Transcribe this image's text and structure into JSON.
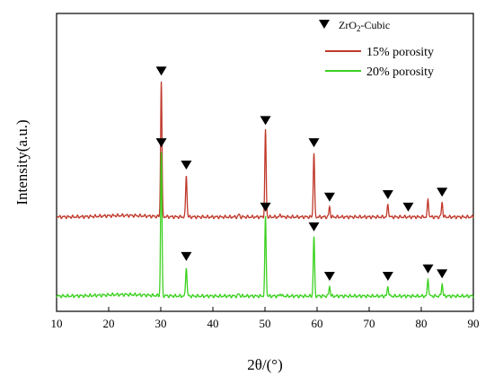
{
  "chart_data": {
    "type": "line",
    "xlabel": "2θ/(°)",
    "ylabel": "Intensity(a.u.)",
    "xlim": [
      10,
      90
    ],
    "x_ticks": [
      10,
      20,
      30,
      40,
      50,
      60,
      70,
      80,
      90
    ],
    "y_ticks_shown": false,
    "grid": false,
    "legend_placement": "top-right",
    "marker_legend": {
      "symbol": "▼",
      "label_main": "ZrO",
      "label_sub": "2",
      "label_rest": "-Cubic"
    },
    "series": [
      {
        "name": "15% porosity",
        "color": "#c0392b",
        "baseline": 0.32,
        "peaks": [
          {
            "x": 30.1,
            "h": 0.55
          },
          {
            "x": 34.9,
            "h": 0.17
          },
          {
            "x": 50.1,
            "h": 0.35
          },
          {
            "x": 59.4,
            "h": 0.26
          },
          {
            "x": 62.4,
            "h": 0.04
          },
          {
            "x": 73.6,
            "h": 0.05
          },
          {
            "x": 81.3,
            "h": 0.07
          },
          {
            "x": 84.0,
            "h": 0.06
          },
          {
            "x": 45.0,
            "h": 0.01
          },
          {
            "x": 53.0,
            "h": 0.01
          }
        ],
        "markers": [
          30.1,
          34.9,
          50.1,
          59.4,
          62.4,
          73.6,
          77.5,
          84.0
        ]
      },
      {
        "name": "20% porosity",
        "color": "#3bd11f",
        "baseline": 0.0,
        "peaks": [
          {
            "x": 30.1,
            "h": 0.58
          },
          {
            "x": 34.9,
            "h": 0.12
          },
          {
            "x": 50.1,
            "h": 0.32
          },
          {
            "x": 59.4,
            "h": 0.24
          },
          {
            "x": 62.4,
            "h": 0.04
          },
          {
            "x": 73.6,
            "h": 0.04
          },
          {
            "x": 81.3,
            "h": 0.07
          },
          {
            "x": 84.0,
            "h": 0.05
          },
          {
            "x": 45.0,
            "h": 0.01
          },
          {
            "x": 53.0,
            "h": 0.01
          }
        ],
        "markers": [
          30.1,
          34.9,
          50.1,
          59.4,
          62.4,
          73.6,
          81.3,
          84.0
        ]
      }
    ]
  }
}
